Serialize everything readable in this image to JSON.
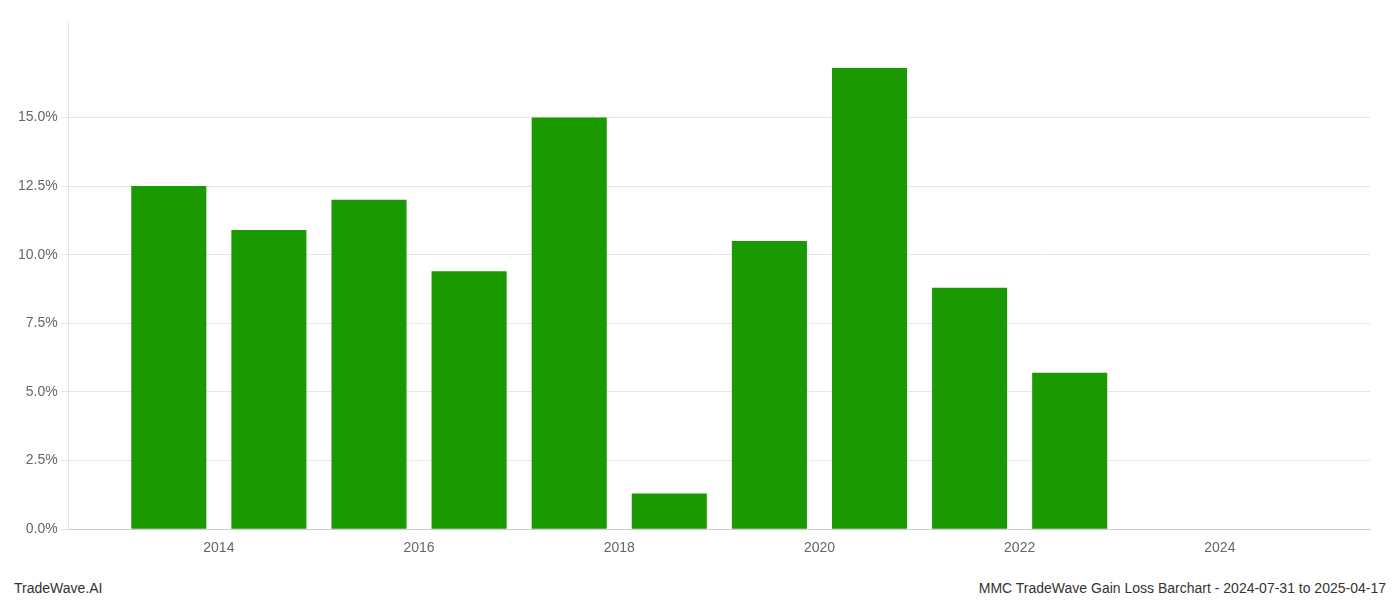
{
  "chart_data": {
    "type": "bar",
    "x": [
      2013.5,
      2014.5,
      2015.5,
      2016.5,
      2017.5,
      2018.5,
      2019.5,
      2020.5,
      2021.5,
      2022.5,
      2023.5
    ],
    "values": [
      0.125,
      0.109,
      0.12,
      0.094,
      0.15,
      0.013,
      0.105,
      0.168,
      0.088,
      0.057,
      0.0
    ],
    "color": "#1a9a00",
    "xlim": [
      2012.5,
      2025.5
    ],
    "xticks": [
      2014,
      2016,
      2018,
      2020,
      2022,
      2024
    ],
    "ylim": [
      0.0,
      0.185
    ],
    "yticks": [
      {
        "value": 0.0,
        "label": "0.0%"
      },
      {
        "value": 0.025,
        "label": "2.5%"
      },
      {
        "value": 0.05,
        "label": "5.0%"
      },
      {
        "value": 0.075,
        "label": "7.5%"
      },
      {
        "value": 0.1,
        "label": "10.0%"
      },
      {
        "value": 0.125,
        "label": "12.5%"
      },
      {
        "value": 0.15,
        "label": "15.0%"
      }
    ],
    "grid": "y",
    "annotations": [
      "TradeWave.AI",
      "MMC TradeWave Gain Loss Barchart - 2024-07-31 to 2025-04-17"
    ]
  }
}
